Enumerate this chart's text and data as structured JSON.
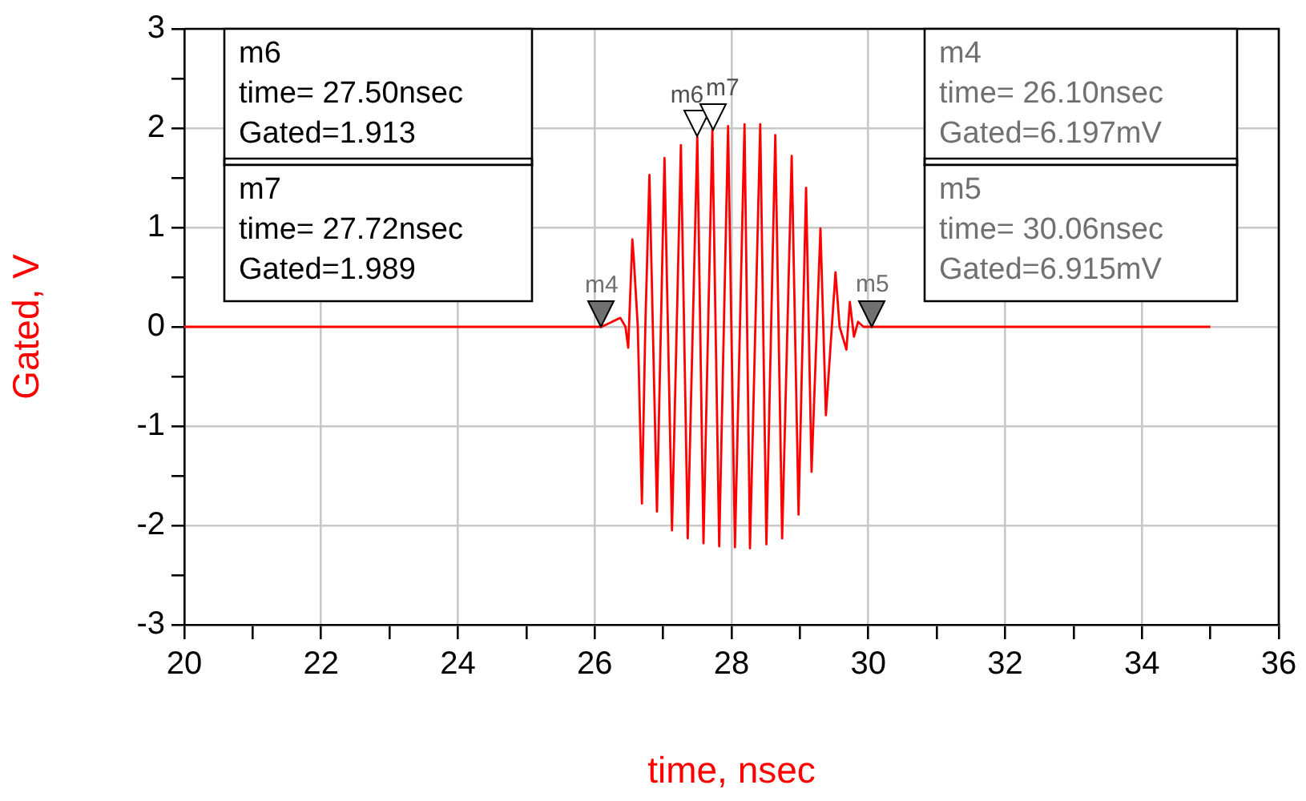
{
  "chart_data": {
    "type": "line",
    "xlabel": "time, nsec",
    "ylabel": "Gated, V",
    "xlim": [
      20,
      36
    ],
    "ylim": [
      -3,
      3
    ],
    "xticks": [
      20,
      {
        "value": 21,
        "label": null
      },
      22,
      {
        "value": 23,
        "label": null
      },
      24,
      {
        "value": 25,
        "label": null
      },
      26,
      {
        "value": 27,
        "label": null
      },
      28,
      {
        "value": 29,
        "label": null
      },
      30,
      {
        "value": 31,
        "label": null
      },
      32,
      {
        "value": 33,
        "label": null
      },
      34,
      {
        "value": 35,
        "label": null
      },
      36
    ],
    "yticks": [
      -3,
      {
        "value": -2.5,
        "label": null
      },
      -2,
      {
        "value": -1.5,
        "label": null
      },
      -1,
      {
        "value": -0.5,
        "label": null
      },
      0,
      {
        "value": 0.5,
        "label": null
      },
      1,
      {
        "value": 1.5,
        "label": null
      },
      2,
      {
        "value": 2.5,
        "label": null
      },
      3
    ],
    "grid": true,
    "legend": false,
    "marker": "none",
    "line_style": "solid",
    "series": [
      {
        "color": "#ff0000",
        "x": [
          20,
          26.0,
          26.1,
          26.375,
          26.45,
          26.49,
          26.55,
          26.57,
          26.63,
          26.69,
          26.74,
          26.8,
          26.91,
          27.02,
          27.13,
          27.26,
          27.36,
          27.5,
          27.59,
          27.72,
          27.82,
          27.95,
          28.05,
          28.19,
          28.27,
          28.42,
          28.51,
          28.64,
          28.74,
          28.88,
          28.98,
          29.09,
          29.17,
          29.3,
          29.38,
          29.52,
          29.58,
          29.68,
          29.73,
          29.79,
          29.85,
          29.93,
          30.06,
          35
        ],
        "values": [
          0,
          0,
          0,
          0.09,
          0,
          -0.21,
          0.88,
          0.7,
          0,
          -1.78,
          0,
          1.53,
          -1.86,
          1.7,
          -2.05,
          1.83,
          -2.13,
          1.913,
          -2.18,
          1.989,
          -2.21,
          2.02,
          -2.22,
          2.04,
          -2.23,
          2.04,
          -2.19,
          1.93,
          -2.13,
          1.72,
          -1.89,
          1.4,
          -1.46,
          0.99,
          -0.89,
          0.55,
          0,
          -0.23,
          0.25,
          -0.1,
          0.05,
          0,
          0,
          0
        ]
      }
    ],
    "annotations": [
      {
        "text": "m4",
        "x": 26.1,
        "y": 0.006197
      },
      {
        "text": "m5",
        "x": 30.06,
        "y": 0.006915
      },
      {
        "text": "m6",
        "x": 27.5,
        "y": 1.913
      },
      {
        "text": "m7",
        "x": 27.72,
        "y": 1.989
      },
      "m6",
      "time= 27.50nsec",
      "Gated=1.913",
      "m7",
      "time= 27.72nsec",
      "Gated=1.989",
      "m4",
      "time= 26.10nsec",
      "Gated=6.197mV",
      "m5",
      "time= 30.06nsec",
      "Gated=6.915mV"
    ]
  }
}
